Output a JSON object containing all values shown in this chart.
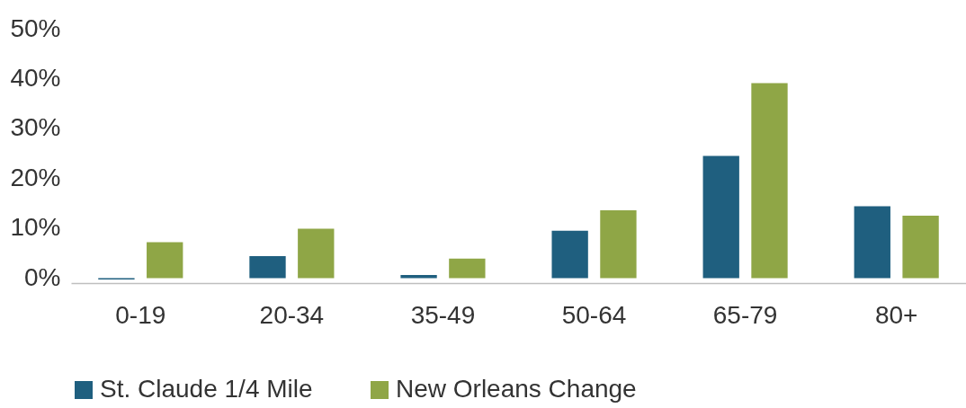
{
  "chart_data": {
    "type": "bar",
    "categories": [
      "0-19",
      "20-34",
      "35-49",
      "50-64",
      "65-79",
      "80+"
    ],
    "series": [
      {
        "name": "St. Claude 1/4 Mile",
        "color": "#1f5f7f",
        "values": [
          -0.3,
          4.4,
          0.6,
          9.5,
          24.5,
          14.4
        ]
      },
      {
        "name": "New Orleans Change",
        "color": "#8fa646",
        "values": [
          7.2,
          9.9,
          3.9,
          13.6,
          39.1,
          12.5
        ]
      }
    ],
    "ylim": [
      -1,
      50
    ],
    "yticks": [
      {
        "value": 0,
        "label": "0%"
      },
      {
        "value": 10,
        "label": "10%"
      },
      {
        "value": 20,
        "label": "20%"
      },
      {
        "value": 30,
        "label": "30%"
      },
      {
        "value": 40,
        "label": "40%"
      },
      {
        "value": 50,
        "label": "50%"
      }
    ],
    "grid": false,
    "legend": "bottom"
  }
}
